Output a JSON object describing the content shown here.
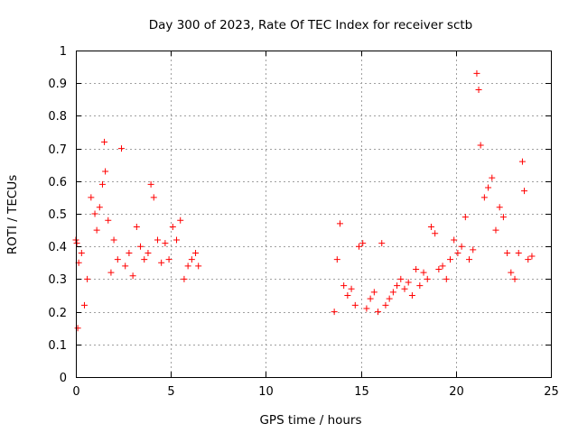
{
  "chart_data": {
    "type": "scatter",
    "title": "Day 300 of 2023, Rate Of TEC Index for receiver sctb",
    "xlabel": "GPS time / hours",
    "ylabel": "ROTI / TECUs",
    "xlim": [
      0,
      25
    ],
    "ylim": [
      0,
      1
    ],
    "x_ticks": [
      0,
      5,
      10,
      15,
      20,
      25
    ],
    "x_tick_labels": [
      "0",
      "5",
      "10",
      "15",
      "20",
      "25"
    ],
    "y_ticks": [
      0,
      0.1,
      0.2,
      0.3,
      0.4,
      0.5,
      0.6,
      0.7,
      0.8,
      0.9,
      1
    ],
    "y_tick_labels": [
      "0",
      "0.1",
      "0.2",
      "0.3",
      "0.4",
      "0.5",
      "0.6",
      "0.7",
      "0.8",
      "0.9",
      "1"
    ],
    "grid": true,
    "marker": "plus",
    "color": "#ff0000",
    "series": [
      {
        "x": [
          0.0,
          0.05,
          0.1,
          0.15,
          0.3,
          0.45,
          0.6,
          0.8,
          1.0,
          1.1,
          1.25,
          1.4,
          1.5,
          1.55,
          1.7,
          1.85,
          2.0,
          2.2,
          2.4,
          2.6,
          2.8,
          3.0,
          3.2,
          3.4,
          3.6,
          3.8,
          3.95,
          4.1,
          4.3,
          4.5,
          4.7,
          4.9,
          5.1,
          5.3,
          5.5,
          5.7,
          5.9,
          6.1,
          6.3,
          6.45,
          13.6,
          13.75,
          13.9,
          14.1,
          14.3,
          14.5,
          14.7,
          14.9,
          15.1,
          15.3,
          15.5,
          15.7,
          15.9,
          16.1,
          16.3,
          16.5,
          16.7,
          16.9,
          17.1,
          17.3,
          17.5,
          17.7,
          17.9,
          18.1,
          18.3,
          18.5,
          18.7,
          18.9,
          19.1,
          19.3,
          19.5,
          19.7,
          19.9,
          20.1,
          20.3,
          20.5,
          20.7,
          20.9,
          21.1,
          21.2,
          21.3,
          21.5,
          21.7,
          21.9,
          22.1,
          22.3,
          22.5,
          22.7,
          22.9,
          23.1,
          23.3,
          23.5,
          23.6,
          23.8,
          24.0
        ],
        "y": [
          0.42,
          0.41,
          0.15,
          0.35,
          0.38,
          0.22,
          0.3,
          0.55,
          0.5,
          0.45,
          0.52,
          0.59,
          0.72,
          0.63,
          0.48,
          0.32,
          0.42,
          0.36,
          0.7,
          0.34,
          0.38,
          0.31,
          0.46,
          0.4,
          0.36,
          0.38,
          0.59,
          0.55,
          0.42,
          0.35,
          0.41,
          0.36,
          0.46,
          0.42,
          0.48,
          0.3,
          0.34,
          0.36,
          0.38,
          0.34,
          0.2,
          0.36,
          0.47,
          0.28,
          0.25,
          0.27,
          0.22,
          0.4,
          0.41,
          0.21,
          0.24,
          0.26,
          0.2,
          0.41,
          0.22,
          0.24,
          0.26,
          0.28,
          0.3,
          0.27,
          0.29,
          0.25,
          0.33,
          0.28,
          0.32,
          0.3,
          0.46,
          0.44,
          0.33,
          0.34,
          0.3,
          0.36,
          0.42,
          0.38,
          0.4,
          0.49,
          0.36,
          0.39,
          0.93,
          0.88,
          0.71,
          0.55,
          0.58,
          0.61,
          0.45,
          0.52,
          0.49,
          0.38,
          0.32,
          0.3,
          0.38,
          0.66,
          0.57,
          0.36,
          0.37
        ]
      }
    ]
  }
}
